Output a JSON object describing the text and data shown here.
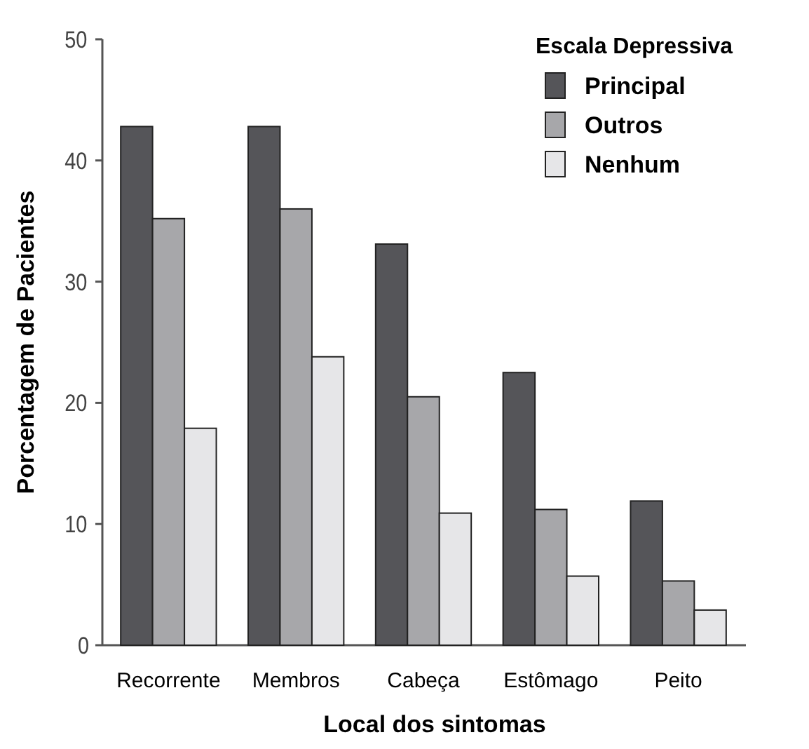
{
  "chart_data": {
    "type": "bar",
    "xlabel": "Local dos sintomas",
    "ylabel": "Porcentagem de Pacientes",
    "legend_title": "Escala Depressiva",
    "legend": "top right",
    "categories": [
      "Recorrente",
      "Membros",
      "Cabeça",
      "Estômago",
      "Peito"
    ],
    "series": [
      {
        "name": "Principal",
        "color": "#555559",
        "values": [
          42.8,
          42.8,
          33.1,
          22.5,
          11.9
        ]
      },
      {
        "name": "Outros",
        "color": "#a7a7aa",
        "values": [
          35.2,
          36.0,
          20.5,
          11.2,
          5.3
        ]
      },
      {
        "name": "Nenhum",
        "color": "#e6e6e8",
        "values": [
          17.9,
          23.8,
          10.9,
          5.7,
          2.9
        ]
      }
    ],
    "ylim": [
      0,
      50
    ],
    "yticks": [
      0,
      10,
      20,
      30,
      40,
      50
    ],
    "grid": false
  }
}
